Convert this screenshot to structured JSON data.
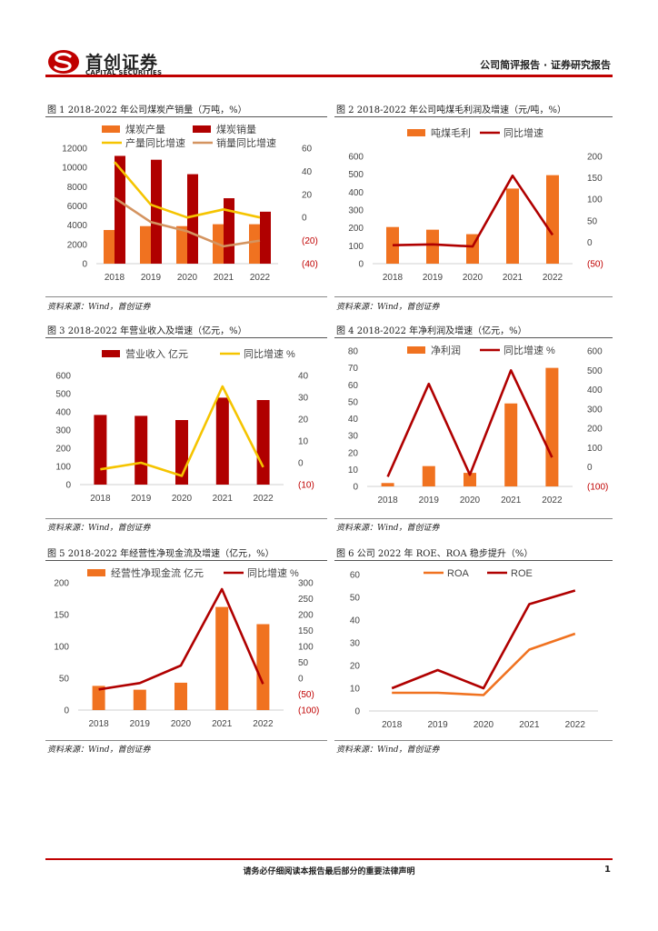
{
  "colors": {
    "brand_red": "#c00000",
    "dark_red": "#b00000",
    "orange": "#f07220",
    "yellow": "#f5c400",
    "tan": "#d49460"
  },
  "header": {
    "logo_cn": "首创证券",
    "logo_en": "CAPITAL SECURITIES",
    "report_type": "公司简评报告 · 证券研究报告"
  },
  "figures": [
    {
      "title": "图 1 2018-2022 年公司煤炭产销量（万吨，%）",
      "source": "资料来源：Wind，首创证券"
    },
    {
      "title": "图 2 2018-2022 年公司吨煤毛利润及增速（元/吨，%）",
      "source": "资料来源：Wind，首创证券"
    },
    {
      "title": "图 3 2018-2022 年营业收入及增速（亿元，%）",
      "source": "资料来源：Wind，首创证券"
    },
    {
      "title": "图 4 2018-2022 年净利润及增速（亿元，%）",
      "source": "资料来源：Wind，首创证券"
    },
    {
      "title": "图 5 2018-2022 年经营性净现金流及增速（亿元，%）",
      "source": "资料来源：Wind，首创证券"
    },
    {
      "title": "图 6 公司 2022 年 ROE、ROA 稳步提升（%）",
      "source": "资料来源：Wind，首创证券"
    }
  ],
  "chart_data": [
    {
      "type": "bar",
      "categories": [
        "2018",
        "2019",
        "2020",
        "2021",
        "2022"
      ],
      "series": [
        {
          "name": "煤炭产量",
          "kind": "bar",
          "axis": "left",
          "color": "#f07220",
          "values": [
            3500,
            3900,
            3900,
            4100,
            4100
          ]
        },
        {
          "name": "煤炭销量",
          "kind": "bar",
          "axis": "left",
          "color": "#b00000",
          "values": [
            11200,
            10800,
            9300,
            6800,
            5400
          ]
        },
        {
          "name": "产量同比增速",
          "kind": "line",
          "axis": "right",
          "color": "#f5c400",
          "values": [
            48,
            11,
            0,
            7,
            0
          ]
        },
        {
          "name": "销量同比增速",
          "kind": "line",
          "axis": "right",
          "color": "#d49460",
          "values": [
            17,
            -4,
            -12,
            -25,
            -20
          ]
        }
      ],
      "left_axis": {
        "range": [
          0,
          12000
        ],
        "ticks": [
          "0",
          "2000",
          "4000",
          "6000",
          "8000",
          "10000",
          "12000"
        ]
      },
      "right_axis": {
        "range": [
          -40,
          60
        ],
        "ticks": [
          "(40)",
          "(20)",
          "0",
          "20",
          "40",
          "60"
        ],
        "neg_color": "#c00000"
      },
      "legend": "top"
    },
    {
      "type": "bar",
      "categories": [
        "2018",
        "2019",
        "2020",
        "2021",
        "2022"
      ],
      "series": [
        {
          "name": "吨煤毛利",
          "kind": "bar",
          "axis": "left",
          "color": "#f07220",
          "values": [
            205,
            190,
            165,
            420,
            495
          ]
        },
        {
          "name": "同比增速",
          "kind": "line",
          "axis": "right",
          "color": "#b00000",
          "values": [
            -7,
            -5,
            -10,
            155,
            17
          ]
        }
      ],
      "left_axis": {
        "range": [
          0,
          600
        ],
        "ticks": [
          "0",
          "100",
          "200",
          "300",
          "400",
          "500",
          "600"
        ]
      },
      "right_axis": {
        "range": [
          -50,
          200
        ],
        "ticks": [
          "(50)",
          "0",
          "50",
          "100",
          "150",
          "200"
        ],
        "neg_color": "#c00000"
      },
      "legend": "top"
    },
    {
      "type": "bar",
      "categories": [
        "2018",
        "2019",
        "2020",
        "2021",
        "2022"
      ],
      "series": [
        {
          "name": "营业收入 亿元",
          "kind": "bar",
          "axis": "left",
          "color": "#b00000",
          "values": [
            383,
            378,
            355,
            478,
            465
          ]
        },
        {
          "name": "同比增速 %",
          "kind": "line",
          "axis": "right",
          "color": "#f5c400",
          "values": [
            -3,
            0,
            -6,
            35,
            -2
          ]
        }
      ],
      "left_axis": {
        "range": [
          0,
          600
        ],
        "ticks": [
          "0",
          "100",
          "200",
          "300",
          "400",
          "500",
          "600"
        ]
      },
      "right_axis": {
        "range": [
          -10,
          40
        ],
        "ticks": [
          "(10)",
          "0",
          "10",
          "20",
          "30",
          "40"
        ],
        "neg_color": "#c00000"
      },
      "legend": "top"
    },
    {
      "type": "bar",
      "categories": [
        "2018",
        "2019",
        "2020",
        "2021",
        "2022"
      ],
      "series": [
        {
          "name": "净利润",
          "kind": "bar",
          "axis": "left",
          "color": "#f07220",
          "values": [
            2,
            12,
            8,
            49,
            70
          ]
        },
        {
          "name": "同比增速 %",
          "kind": "line",
          "axis": "right",
          "color": "#b00000",
          "values": [
            -50,
            430,
            -40,
            500,
            50
          ]
        }
      ],
      "left_axis": {
        "range": [
          0,
          80
        ],
        "ticks": [
          "0",
          "10",
          "20",
          "30",
          "40",
          "50",
          "60",
          "70",
          "80"
        ]
      },
      "right_axis": {
        "range": [
          -100,
          600
        ],
        "ticks": [
          "(100)",
          "0",
          "100",
          "200",
          "300",
          "400",
          "500",
          "600"
        ],
        "neg_color": "#c00000"
      },
      "legend": "top"
    },
    {
      "type": "bar",
      "categories": [
        "2018",
        "2019",
        "2020",
        "2021",
        "2022"
      ],
      "series": [
        {
          "name": "经营性净现金流 亿元",
          "kind": "bar",
          "axis": "left",
          "color": "#f07220",
          "values": [
            38,
            32,
            43,
            162,
            135
          ]
        },
        {
          "name": "同比增速 %",
          "kind": "line",
          "axis": "right",
          "color": "#b00000",
          "values": [
            -35,
            -15,
            40,
            280,
            -18
          ]
        }
      ],
      "left_axis": {
        "range": [
          0,
          200
        ],
        "ticks": [
          "0",
          "50",
          "100",
          "150",
          "200"
        ]
      },
      "right_axis": {
        "range": [
          -100,
          300
        ],
        "ticks": [
          "(100)",
          "(50)",
          "0",
          "50",
          "100",
          "150",
          "200",
          "250",
          "300"
        ],
        "neg_color": "#c00000"
      },
      "legend": "top"
    },
    {
      "type": "line",
      "categories": [
        "2018",
        "2019",
        "2020",
        "2021",
        "2022"
      ],
      "series": [
        {
          "name": "ROA",
          "kind": "line",
          "axis": "left",
          "color": "#f07220",
          "values": [
            8,
            8,
            7,
            27,
            34
          ]
        },
        {
          "name": "ROE",
          "kind": "line",
          "axis": "left",
          "color": "#b00000",
          "values": [
            10,
            18,
            10,
            47,
            53
          ]
        }
      ],
      "left_axis": {
        "range": [
          0,
          60
        ],
        "ticks": [
          "0",
          "10",
          "20",
          "30",
          "40",
          "50",
          "60"
        ]
      },
      "legend": "top"
    }
  ],
  "footer": {
    "disclaimer": "请务必仔细阅读本报告最后部分的重要法律声明",
    "page_number": "1"
  }
}
